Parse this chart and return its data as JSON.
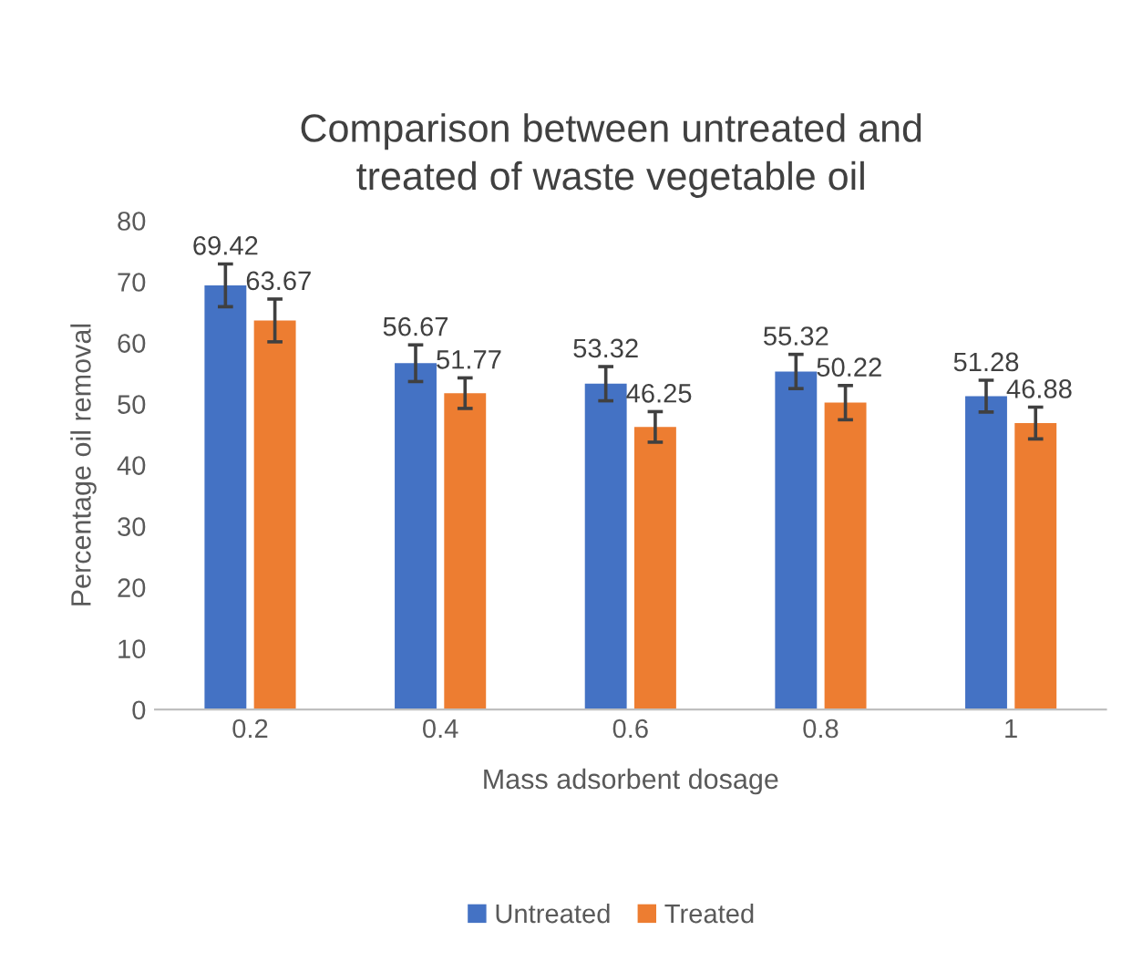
{
  "chart_data": {
    "type": "bar",
    "title": "Comparison between untreated and\ntreated of waste vegetable oil",
    "xlabel": "Mass adsorbent dosage",
    "ylabel": "Percentage oil removal",
    "categories": [
      "0.2",
      "0.4",
      "0.6",
      "0.8",
      "1"
    ],
    "series": [
      {
        "name": "Untreated",
        "color": "#4472c4",
        "values": [
          69.42,
          56.67,
          53.32,
          55.32,
          51.28
        ],
        "errors": [
          3.5,
          3.0,
          2.8,
          2.8,
          2.6
        ]
      },
      {
        "name": "Treated",
        "color": "#ed7d31",
        "values": [
          63.67,
          51.77,
          46.25,
          50.22,
          46.88
        ],
        "errors": [
          3.5,
          2.5,
          2.5,
          2.8,
          2.6
        ]
      }
    ],
    "ylim": [
      0,
      80
    ],
    "yticks": [
      0,
      10,
      20,
      30,
      40,
      50,
      60,
      70,
      80
    ],
    "grid": false,
    "legend": "bottom",
    "data_labels": true
  }
}
